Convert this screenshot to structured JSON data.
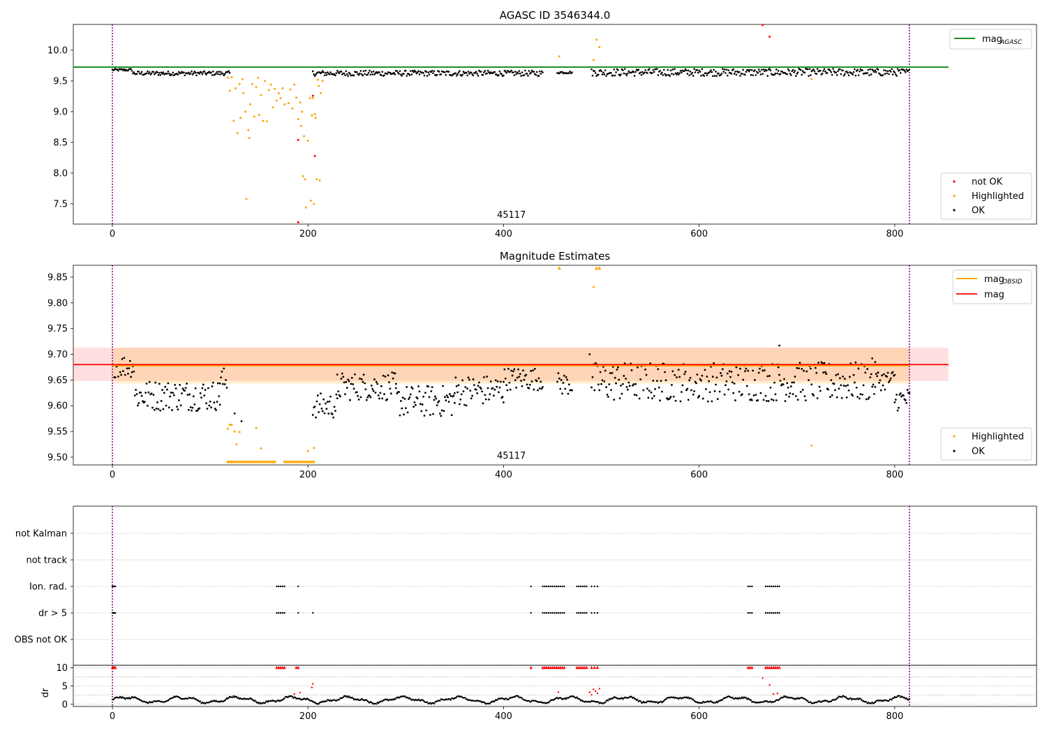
{
  "chart_data": [
    {
      "type": "scatter",
      "title": "AGASC ID 3546344.0",
      "xlabel": "",
      "ylabel": "",
      "xlim": [
        -40,
        945
      ],
      "ylim": [
        7.17,
        10.42
      ],
      "x_ticks": [
        0,
        200,
        400,
        600,
        800
      ],
      "y_ticks": [
        7.5,
        8.0,
        8.5,
        9.0,
        9.5,
        10.0
      ],
      "x_tick_labels": [
        "0",
        "200",
        "400",
        "600",
        "800"
      ],
      "y_tick_labels": [
        "7.5",
        "8.0",
        "8.5",
        "9.0",
        "9.5",
        "10.0"
      ],
      "obsid_annotation": "45117",
      "obsid_annotation_x": 408,
      "vertical_lines_x": [
        0,
        815
      ],
      "mag_agasc": 9.725,
      "mag_line_xrange": [
        -40,
        855
      ],
      "legend_lines": [
        {
          "name": "mag",
          "subscript": "AGASC",
          "color": "#008000"
        }
      ],
      "legend_points": [
        {
          "name": "not OK",
          "color": "#ff0000"
        },
        {
          "name": "Highlighted",
          "color": "#ffa500"
        },
        {
          "name": "OK",
          "color": "#000000"
        }
      ],
      "ok_segments": [
        {
          "x": [
            0,
            20
          ],
          "y": [
            9.66,
            9.7
          ]
        },
        {
          "x": [
            21,
            120
          ],
          "y": [
            9.59,
            9.66
          ]
        },
        {
          "x": [
            205,
            440
          ],
          "y": [
            9.58,
            9.67
          ]
        },
        {
          "x": [
            455,
            470
          ],
          "y": [
            9.62,
            9.66
          ]
        },
        {
          "x": [
            490,
            815
          ],
          "y": [
            9.58,
            9.7
          ]
        }
      ],
      "highlighted": [
        {
          "x": 118,
          "y": 9.55
        },
        {
          "x": 120,
          "y": 9.34
        },
        {
          "x": 122,
          "y": 9.56
        },
        {
          "x": 124,
          "y": 8.85
        },
        {
          "x": 126,
          "y": 9.38
        },
        {
          "x": 128,
          "y": 8.65
        },
        {
          "x": 130,
          "y": 9.45
        },
        {
          "x": 131,
          "y": 8.9
        },
        {
          "x": 133,
          "y": 9.53
        },
        {
          "x": 134,
          "y": 9.3
        },
        {
          "x": 136,
          "y": 9.0
        },
        {
          "x": 137,
          "y": 7.58
        },
        {
          "x": 139,
          "y": 8.7
        },
        {
          "x": 140,
          "y": 8.57
        },
        {
          "x": 141,
          "y": 9.12
        },
        {
          "x": 143,
          "y": 9.45
        },
        {
          "x": 145,
          "y": 8.92
        },
        {
          "x": 147,
          "y": 9.4
        },
        {
          "x": 149,
          "y": 9.55
        },
        {
          "x": 150,
          "y": 8.95
        },
        {
          "x": 152,
          "y": 9.27
        },
        {
          "x": 154,
          "y": 8.85
        },
        {
          "x": 156,
          "y": 9.5
        },
        {
          "x": 158,
          "y": 8.84
        },
        {
          "x": 160,
          "y": 9.35
        },
        {
          "x": 162,
          "y": 9.44
        },
        {
          "x": 164,
          "y": 9.07
        },
        {
          "x": 166,
          "y": 9.37
        },
        {
          "x": 168,
          "y": 9.18
        },
        {
          "x": 170,
          "y": 9.3
        },
        {
          "x": 172,
          "y": 9.22
        },
        {
          "x": 174,
          "y": 9.38
        },
        {
          "x": 176,
          "y": 9.12
        },
        {
          "x": 180,
          "y": 9.14
        },
        {
          "x": 182,
          "y": 9.36
        },
        {
          "x": 184,
          "y": 9.05
        },
        {
          "x": 186,
          "y": 9.44
        },
        {
          "x": 188,
          "y": 9.23
        },
        {
          "x": 190,
          "y": 8.88
        },
        {
          "x": 192,
          "y": 9.15
        },
        {
          "x": 193,
          "y": 8.77
        },
        {
          "x": 194,
          "y": 9.0
        },
        {
          "x": 195,
          "y": 7.95
        },
        {
          "x": 196,
          "y": 8.6
        },
        {
          "x": 197,
          "y": 7.9
        },
        {
          "x": 198,
          "y": 7.44
        },
        {
          "x": 200,
          "y": 8.53
        },
        {
          "x": 202,
          "y": 9.22
        },
        {
          "x": 203,
          "y": 7.55
        },
        {
          "x": 204,
          "y": 8.94
        },
        {
          "x": 205,
          "y": 9.22
        },
        {
          "x": 206,
          "y": 7.5
        },
        {
          "x": 207,
          "y": 8.96
        },
        {
          "x": 208,
          "y": 8.9
        },
        {
          "x": 209,
          "y": 7.9
        },
        {
          "x": 210,
          "y": 9.52
        },
        {
          "x": 211,
          "y": 9.42
        },
        {
          "x": 212,
          "y": 7.88
        },
        {
          "x": 213,
          "y": 9.3
        },
        {
          "x": 215,
          "y": 9.5
        },
        {
          "x": 457,
          "y": 9.9
        },
        {
          "x": 492,
          "y": 9.84
        },
        {
          "x": 495,
          "y": 10.17
        },
        {
          "x": 498,
          "y": 10.05
        },
        {
          "x": 715,
          "y": 9.53
        }
      ],
      "not_ok": [
        {
          "x": 190,
          "y": 8.54
        },
        {
          "x": 190,
          "y": 7.2
        },
        {
          "x": 205,
          "y": 9.26
        },
        {
          "x": 207,
          "y": 8.28
        },
        {
          "x": 665,
          "y": 10.41
        },
        {
          "x": 672,
          "y": 10.22
        }
      ]
    },
    {
      "type": "scatter",
      "title": "Magnitude Estimates",
      "xlabel": "",
      "ylabel": "",
      "xlim": [
        -40,
        945
      ],
      "ylim": [
        9.485,
        9.873
      ],
      "x_ticks": [
        0,
        200,
        400,
        600,
        800
      ],
      "y_ticks": [
        9.5,
        9.55,
        9.6,
        9.65,
        9.7,
        9.75,
        9.8,
        9.85
      ],
      "x_tick_labels": [
        "0",
        "200",
        "400",
        "600",
        "800"
      ],
      "y_tick_labels": [
        "9.50",
        "9.55",
        "9.60",
        "9.65",
        "9.70",
        "9.75",
        "9.80",
        "9.85"
      ],
      "obsid_annotation": "45117",
      "obsid_annotation_x": 408,
      "vertical_lines_x": [
        0,
        815
      ],
      "mag_obsid": 9.678,
      "mag_obsid_band": [
        9.643,
        9.713
      ],
      "mag": 9.68,
      "mag_band": [
        9.648,
        9.713
      ],
      "line_xrange": [
        -40,
        855
      ],
      "legend_lines": [
        {
          "name": "mag",
          "subscript": "OBSID",
          "color": "#ffa500"
        },
        {
          "name": "mag",
          "subscript": "",
          "color": "#ff0000"
        }
      ],
      "legend_points": [
        {
          "name": "Highlighted",
          "color": "#ffa500"
        },
        {
          "name": "OK",
          "color": "#000000"
        }
      ],
      "ok_segments": [
        {
          "x": [
            2,
            22
          ],
          "y": [
            9.655,
            9.7
          ]
        },
        {
          "x": [
            23,
            110
          ],
          "y": [
            9.59,
            9.65
          ]
        },
        {
          "x": [
            110,
            117
          ],
          "y": [
            9.62,
            9.675
          ]
        },
        {
          "x": [
            205,
            230
          ],
          "y": [
            9.575,
            9.625
          ]
        },
        {
          "x": [
            230,
            290
          ],
          "y": [
            9.61,
            9.665
          ]
        },
        {
          "x": [
            290,
            350
          ],
          "y": [
            9.578,
            9.64
          ]
        },
        {
          "x": [
            350,
            400
          ],
          "y": [
            9.6,
            9.66
          ]
        },
        {
          "x": [
            400,
            440
          ],
          "y": [
            9.63,
            9.675
          ]
        },
        {
          "x": [
            455,
            470
          ],
          "y": [
            9.62,
            9.665
          ]
        },
        {
          "x": [
            490,
            780
          ],
          "y": [
            9.608,
            9.685
          ]
        },
        {
          "x": [
            780,
            800
          ],
          "y": [
            9.63,
            9.67
          ]
        },
        {
          "x": [
            800,
            815
          ],
          "y": [
            9.59,
            9.635
          ]
        }
      ],
      "ok_extra": [
        {
          "x": 488,
          "y": 9.7
        },
        {
          "x": 682,
          "y": 9.717
        },
        {
          "x": 777,
          "y": 9.692
        },
        {
          "x": 125,
          "y": 9.585
        },
        {
          "x": 132,
          "y": 9.57
        }
      ],
      "highlighted": [
        {
          "x": 118,
          "y": 9.555
        },
        {
          "x": 120,
          "y": 9.563
        },
        {
          "x": 122,
          "y": 9.563
        },
        {
          "x": 125,
          "y": 9.55
        },
        {
          "x": 127,
          "y": 9.525
        },
        {
          "x": 130,
          "y": 9.549
        },
        {
          "x": 147,
          "y": 9.557
        },
        {
          "x": 152,
          "y": 9.517
        },
        {
          "x": 200,
          "y": 9.512
        },
        {
          "x": 206,
          "y": 9.518
        },
        {
          "x": 457,
          "y": 9.87
        },
        {
          "x": 492,
          "y": 9.831
        },
        {
          "x": 495,
          "y": 9.87
        },
        {
          "x": 498,
          "y": 9.87
        },
        {
          "x": 715,
          "y": 9.523
        }
      ],
      "clipped_x_range": [
        118,
        206
      ],
      "clipped_y": 9.491
    },
    {
      "type": "scatter",
      "title": "",
      "xlabel": "",
      "ylabel": "",
      "xlim": [
        -40,
        945
      ],
      "x_ticks": [
        0,
        200,
        400,
        600,
        800
      ],
      "x_tick_labels": [
        "0",
        "200",
        "400",
        "600",
        "800"
      ],
      "vertical_lines_x": [
        0,
        815
      ],
      "flag_rows": [
        "not Kalman",
        "not track",
        "Ion. rad.",
        "dr > 5",
        "OBS not OK"
      ],
      "flag_points": {
        "Ion. rad.": [
          0,
          1,
          2,
          3,
          168,
          170,
          172,
          174,
          176,
          190,
          428,
          440,
          442,
          444,
          446,
          448,
          450,
          452,
          454,
          456,
          458,
          460,
          462,
          475,
          477,
          479,
          481,
          483,
          485,
          490,
          493,
          496,
          650,
          652,
          654,
          668,
          670,
          672,
          674,
          676,
          678,
          680,
          682
        ],
        "dr > 5": [
          0,
          1,
          2,
          3,
          168,
          170,
          172,
          174,
          176,
          190,
          205,
          428,
          440,
          442,
          444,
          446,
          448,
          450,
          452,
          454,
          456,
          458,
          460,
          462,
          475,
          477,
          479,
          481,
          483,
          485,
          490,
          493,
          496,
          650,
          652,
          654,
          668,
          670,
          672,
          674,
          676,
          678,
          680,
          682
        ]
      }
    },
    {
      "type": "scatter",
      "title": "",
      "xlabel": "",
      "ylabel": "dr",
      "xlim": [
        -40,
        945
      ],
      "ylim": [
        -0.6,
        10.7
      ],
      "y_ticks": [
        0,
        5,
        10
      ],
      "y_tick_labels": [
        "0",
        "5",
        "10"
      ],
      "x_ticks": [
        0,
        200,
        400,
        600,
        800
      ],
      "x_tick_labels": [
        "0",
        "200",
        "400",
        "600",
        "800"
      ],
      "vertical_lines_x": [
        0,
        815
      ],
      "clipped_red_x": [
        0,
        1,
        2,
        3,
        168,
        170,
        172,
        174,
        176,
        188,
        190,
        428,
        440,
        442,
        444,
        446,
        448,
        450,
        452,
        454,
        456,
        458,
        460,
        462,
        475,
        477,
        479,
        481,
        483,
        485,
        490,
        493,
        496,
        650,
        652,
        654,
        668,
        670,
        672,
        674,
        676,
        678,
        680,
        682
      ],
      "red_points": [
        {
          "x": 186,
          "y": 2.8
        },
        {
          "x": 192,
          "y": 3.2
        },
        {
          "x": 205,
          "y": 5.6
        },
        {
          "x": 204,
          "y": 4.6
        },
        {
          "x": 456,
          "y": 3.3
        },
        {
          "x": 488,
          "y": 3.3
        },
        {
          "x": 490,
          "y": 2.6
        },
        {
          "x": 492,
          "y": 4.1
        },
        {
          "x": 494,
          "y": 3.6
        },
        {
          "x": 496,
          "y": 3.0
        },
        {
          "x": 498,
          "y": 4.3
        },
        {
          "x": 665,
          "y": 7.2
        },
        {
          "x": 672,
          "y": 5.3
        },
        {
          "x": 676,
          "y": 2.8
        },
        {
          "x": 680,
          "y": 3.0
        }
      ],
      "ok_range": [
        0,
        815
      ]
    }
  ]
}
